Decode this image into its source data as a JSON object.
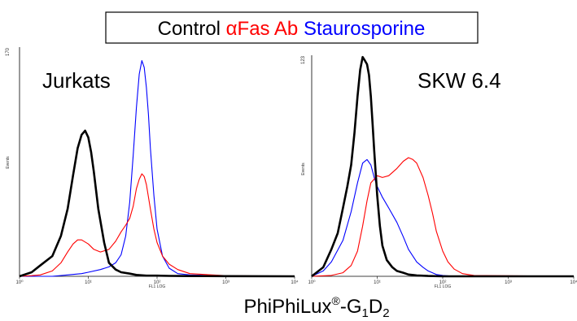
{
  "legend": {
    "items": [
      {
        "label": "Control",
        "color": "#000000"
      },
      {
        "label": "αFas Ab",
        "color": "#ff0000"
      },
      {
        "label": "Staurosporine",
        "color": "#0000ff"
      }
    ]
  },
  "xlabel": {
    "base": "PhiPhiLux",
    "registered": "®",
    "dash": "-G",
    "sub1": "1",
    "d": "D",
    "sub2": "2"
  },
  "colors": {
    "control": "#000000",
    "fas": "#ff0000",
    "stauro": "#0000ff"
  },
  "chart_data": [
    {
      "type": "line",
      "title": "Jurkats",
      "xlabel": "FL1 LOG",
      "ylabel": "Events",
      "xscale": "log",
      "xlim": [
        1,
        10000
      ],
      "ylim": [
        0,
        170
      ],
      "ytick_top": "170",
      "xticks": [
        "10⁰",
        "10¹",
        "10²",
        "10³",
        "10⁴"
      ],
      "series": [
        {
          "color": "#000000",
          "x": [
            1.0,
            1.5,
            2.0,
            3.0,
            4.0,
            5.0,
            6.0,
            7.0,
            8.0,
            9.0,
            10.0,
            11.0,
            12.0,
            14.0,
            17.0,
            20.0,
            25.0,
            30.0,
            40.0,
            50.0,
            70.0,
            100.0,
            150.0,
            300.0,
            1000.0,
            10000.0
          ],
          "y": [
            0,
            3,
            8,
            15,
            30,
            50,
            75,
            95,
            105,
            108,
            103,
            92,
            78,
            50,
            25,
            10,
            5,
            3,
            2,
            1,
            0.5,
            0.5,
            0.3,
            0.2,
            0.1,
            0
          ]
        },
        {
          "color": "#ff0000",
          "x": [
            1.0,
            1.5,
            2.0,
            3.0,
            4.0,
            5.0,
            6.0,
            7.0,
            8.0,
            10.0,
            12.0,
            15.0,
            20.0,
            25.0,
            30.0,
            35.0,
            40.0,
            45.0,
            50.0,
            55.0,
            60.0,
            65.0,
            70.0,
            80.0,
            90.0,
            100.0,
            120.0,
            150.0,
            200.0,
            300.0,
            1000.0,
            10000.0
          ],
          "y": [
            0,
            0.5,
            1,
            4,
            10,
            18,
            24,
            27,
            27,
            24,
            20,
            18,
            20,
            26,
            33,
            38,
            43,
            52,
            65,
            72,
            76,
            74,
            68,
            50,
            35,
            25,
            15,
            9,
            5,
            2,
            0.5,
            0
          ]
        },
        {
          "color": "#0000ff",
          "x": [
            1.0,
            3.0,
            5.0,
            8.0,
            10.0,
            15.0,
            20.0,
            25.0,
            30.0,
            35.0,
            40.0,
            45.0,
            50.0,
            55.0,
            60.0,
            65.0,
            70.0,
            75.0,
            80.0,
            90.0,
            100.0,
            120.0,
            150.0,
            200.0,
            300.0,
            1000.0,
            10000.0
          ],
          "y": [
            0,
            0,
            1,
            2,
            3,
            5,
            7,
            10,
            16,
            30,
            55,
            90,
            125,
            150,
            160,
            155,
            140,
            120,
            95,
            60,
            35,
            15,
            6,
            2,
            1,
            0.3,
            0
          ]
        }
      ]
    },
    {
      "type": "line",
      "title": "SKW 6.4",
      "xlabel": "FL1 LOG",
      "ylabel": "Events",
      "xscale": "log",
      "xlim": [
        1,
        10000
      ],
      "ylim": [
        0,
        123
      ],
      "ytick_top": "123",
      "xticks": [
        "10⁰",
        "10¹",
        "10²",
        "10³",
        "10⁴"
      ],
      "series": [
        {
          "color": "#000000",
          "x": [
            1.0,
            1.5,
            2.0,
            2.5,
            3.0,
            3.5,
            4.0,
            4.5,
            5.0,
            5.5,
            6.0,
            6.5,
            7.0,
            7.5,
            8.0,
            8.5,
            9.0,
            10.0,
            11.0,
            12.0,
            14.0,
            17.0,
            20.0,
            25.0,
            30.0,
            40.0,
            60.0,
            100.0,
            10000.0
          ],
          "y": [
            0,
            5,
            15,
            24,
            38,
            50,
            62,
            80,
            100,
            115,
            122,
            120,
            118,
            112,
            100,
            85,
            70,
            45,
            28,
            17,
            9,
            5,
            3,
            2,
            1,
            0.5,
            0.2,
            0,
            0
          ]
        },
        {
          "color": "#ff0000",
          "x": [
            1.0,
            2.0,
            3.0,
            4.0,
            5.0,
            6.0,
            7.0,
            8.0,
            10.0,
            12.0,
            15.0,
            20.0,
            25.0,
            30.0,
            35.0,
            40.0,
            50.0,
            60.0,
            70.0,
            80.0,
            100.0,
            120.0,
            150.0,
            200.0,
            300.0,
            10000.0
          ],
          "y": [
            0,
            0.5,
            2,
            6,
            14,
            28,
            42,
            52,
            56,
            55,
            56,
            60,
            64,
            66,
            65,
            63,
            55,
            45,
            35,
            25,
            14,
            8,
            4,
            1.5,
            0.5,
            0
          ]
        },
        {
          "color": "#0000ff",
          "x": [
            1.0,
            1.5,
            2.0,
            3.0,
            4.0,
            5.0,
            6.0,
            7.0,
            8.0,
            9.0,
            10.0,
            12.0,
            15.0,
            20.0,
            25.0,
            30.0,
            40.0,
            50.0,
            60.0,
            80.0,
            100.0,
            150.0,
            10000.0
          ],
          "y": [
            0,
            3,
            8,
            20,
            36,
            52,
            63,
            65,
            62,
            55,
            50,
            44,
            38,
            30,
            22,
            15,
            8,
            5,
            3,
            1,
            0.5,
            0,
            0
          ]
        }
      ]
    }
  ]
}
